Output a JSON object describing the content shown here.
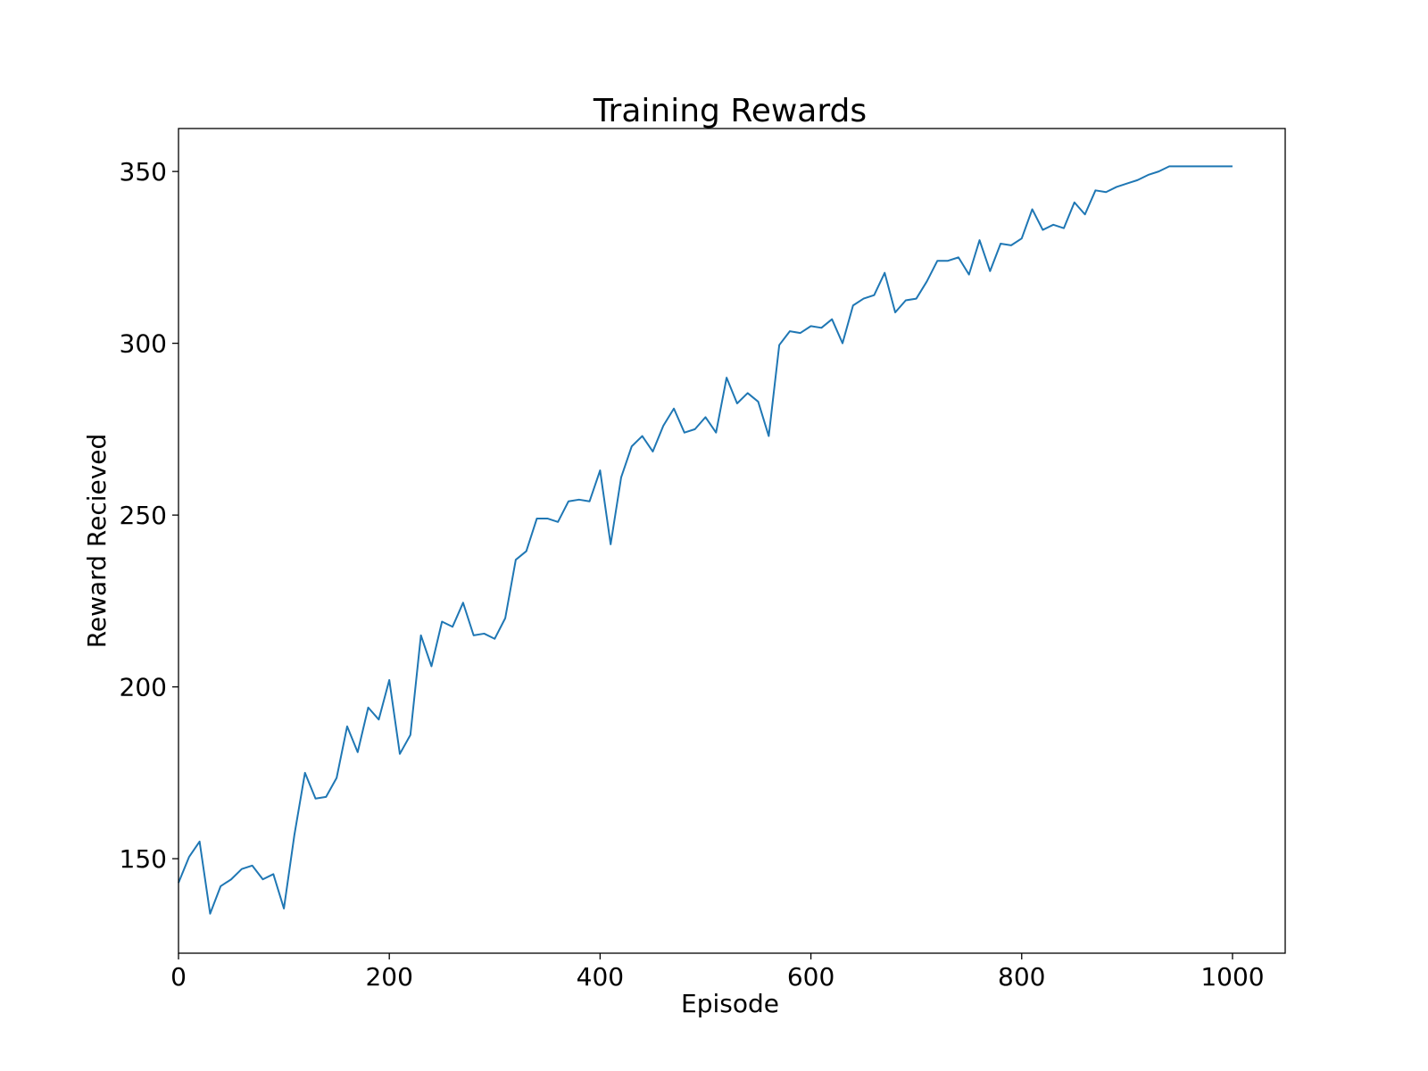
{
  "chart_data": {
    "type": "line",
    "title": "Training Rewards",
    "xlabel": "Episode",
    "ylabel": "Reward Recieved",
    "xlim": [
      0,
      1050
    ],
    "ylim": [
      122.5,
      362.5
    ],
    "xticks": [
      0,
      200,
      400,
      600,
      800,
      1000
    ],
    "xtick_labels": [
      "0",
      "200",
      "400",
      "600",
      "800",
      "1000"
    ],
    "yticks": [
      150,
      200,
      250,
      300,
      350
    ],
    "ytick_labels": [
      "150",
      "200",
      "250",
      "300",
      "350"
    ],
    "grid": false,
    "line_color": "#1f77b4",
    "series": [
      {
        "x": [
          0,
          10,
          20,
          30,
          40,
          50,
          60,
          70,
          80,
          90,
          100,
          110,
          120,
          130,
          140,
          150,
          160,
          170,
          180,
          190,
          200,
          210,
          220,
          230,
          240,
          250,
          260,
          270,
          280,
          290,
          300,
          310,
          320,
          330,
          340,
          350,
          360,
          370,
          380,
          390,
          400,
          410,
          420,
          430,
          440,
          450,
          460,
          470,
          480,
          490,
          500,
          510,
          520,
          530,
          540,
          550,
          560,
          570,
          580,
          590,
          600,
          610,
          620,
          630,
          640,
          650,
          660,
          670,
          680,
          690,
          700,
          710,
          720,
          730,
          740,
          750,
          760,
          770,
          780,
          790,
          800,
          810,
          820,
          830,
          840,
          850,
          860,
          870,
          880,
          890,
          900,
          910,
          920,
          930,
          940,
          950,
          960,
          970,
          980,
          990,
          1000
        ],
        "y": [
          143,
          150.5,
          155,
          134,
          142,
          144,
          147,
          148,
          144,
          145.5,
          135.5,
          157,
          175,
          167.5,
          168,
          173.5,
          188.5,
          181,
          194,
          190.5,
          202,
          180.5,
          186,
          215,
          206,
          219,
          217.5,
          224.5,
          215,
          215.5,
          214,
          220,
          237,
          239.5,
          249,
          249,
          248,
          254,
          254.5,
          254,
          263,
          241.5,
          261,
          270,
          273,
          268.5,
          276,
          281,
          274,
          275,
          278.5,
          274,
          290,
          282.5,
          285.5,
          283,
          273,
          299.5,
          303.5,
          303,
          305,
          304.5,
          307,
          300,
          311,
          313,
          314,
          320.5,
          309,
          312.5,
          313,
          318,
          324,
          324,
          325,
          320,
          330,
          321,
          329,
          328.5,
          330.5,
          339,
          333,
          334.5,
          333.5,
          341,
          337.5,
          344.5,
          344,
          345.5,
          346.5,
          347.5,
          349,
          350,
          351.5,
          351.5,
          351.5,
          351.5,
          351.5,
          351.5,
          351.5
        ]
      }
    ]
  }
}
